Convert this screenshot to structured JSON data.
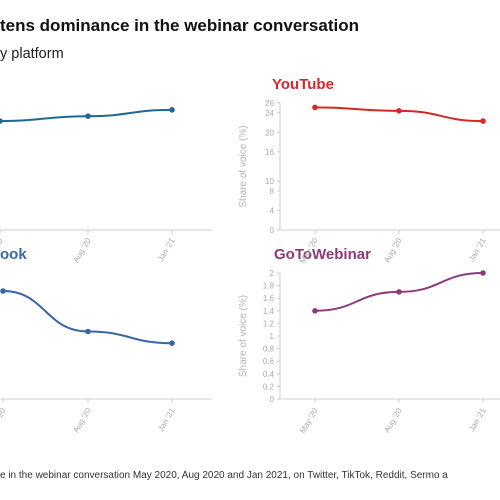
{
  "header": {
    "title": "tens dominance in the webinar conversation",
    "subtitle": "y platform"
  },
  "footer": {
    "source": "e in the webinar conversation May 2020, Aug 2020 and Jan 2021, on Twitter, TikTok, Reddit, Sermo a"
  },
  "colors": {
    "twitter": "#1f6a93",
    "youtube": "#d62728",
    "facebook": "#3a66a3",
    "gotowebinar": "#8e3a7a",
    "axis": "#cccccc",
    "tick_text": "#aaaaaa"
  },
  "chart_data": [
    {
      "type": "line",
      "title": "",
      "categories": [
        "May '20",
        "Aug '20",
        "Jan '21"
      ],
      "series": [
        {
          "values": [
            null,
            null,
            null
          ]
        }
      ],
      "visible_points": [
        22.3,
        23.3,
        24.6
      ],
      "ylabel": "",
      "ylim": [
        0,
        26
      ]
    },
    {
      "type": "line",
      "title": "YouTube",
      "categories": [
        "May '20",
        "Aug '20",
        "Jan '21"
      ],
      "series": [
        {
          "values": [
            25.1,
            24.4,
            22.3
          ]
        }
      ],
      "ylabel": "Share of voice (%)",
      "ylim": [
        0,
        26
      ],
      "yticks": [
        0,
        4,
        8,
        10,
        16,
        20,
        24,
        26
      ]
    },
    {
      "type": "line",
      "title": "ook",
      "categories": [
        "May '20",
        "Aug '20",
        "Jan '21"
      ],
      "series": [
        {
          "values": [
            null,
            null,
            null
          ]
        }
      ],
      "visible_points": [
        1.2,
        0.75,
        0.62
      ],
      "ylabel": "",
      "ylim": [
        0,
        1.4
      ]
    },
    {
      "type": "line",
      "title": "GoToWebinar",
      "categories": [
        "May '20",
        "Aug '20",
        "Jan '21"
      ],
      "series": [
        {
          "values": [
            1.4,
            1.7,
            2.0
          ]
        }
      ],
      "ylabel": "Share of voice (%)",
      "ylim": [
        0,
        2
      ],
      "yticks": [
        0,
        0.2,
        0.4,
        0.6,
        0.8,
        1,
        1.2,
        1.4,
        1.6,
        1.8,
        2
      ]
    }
  ]
}
